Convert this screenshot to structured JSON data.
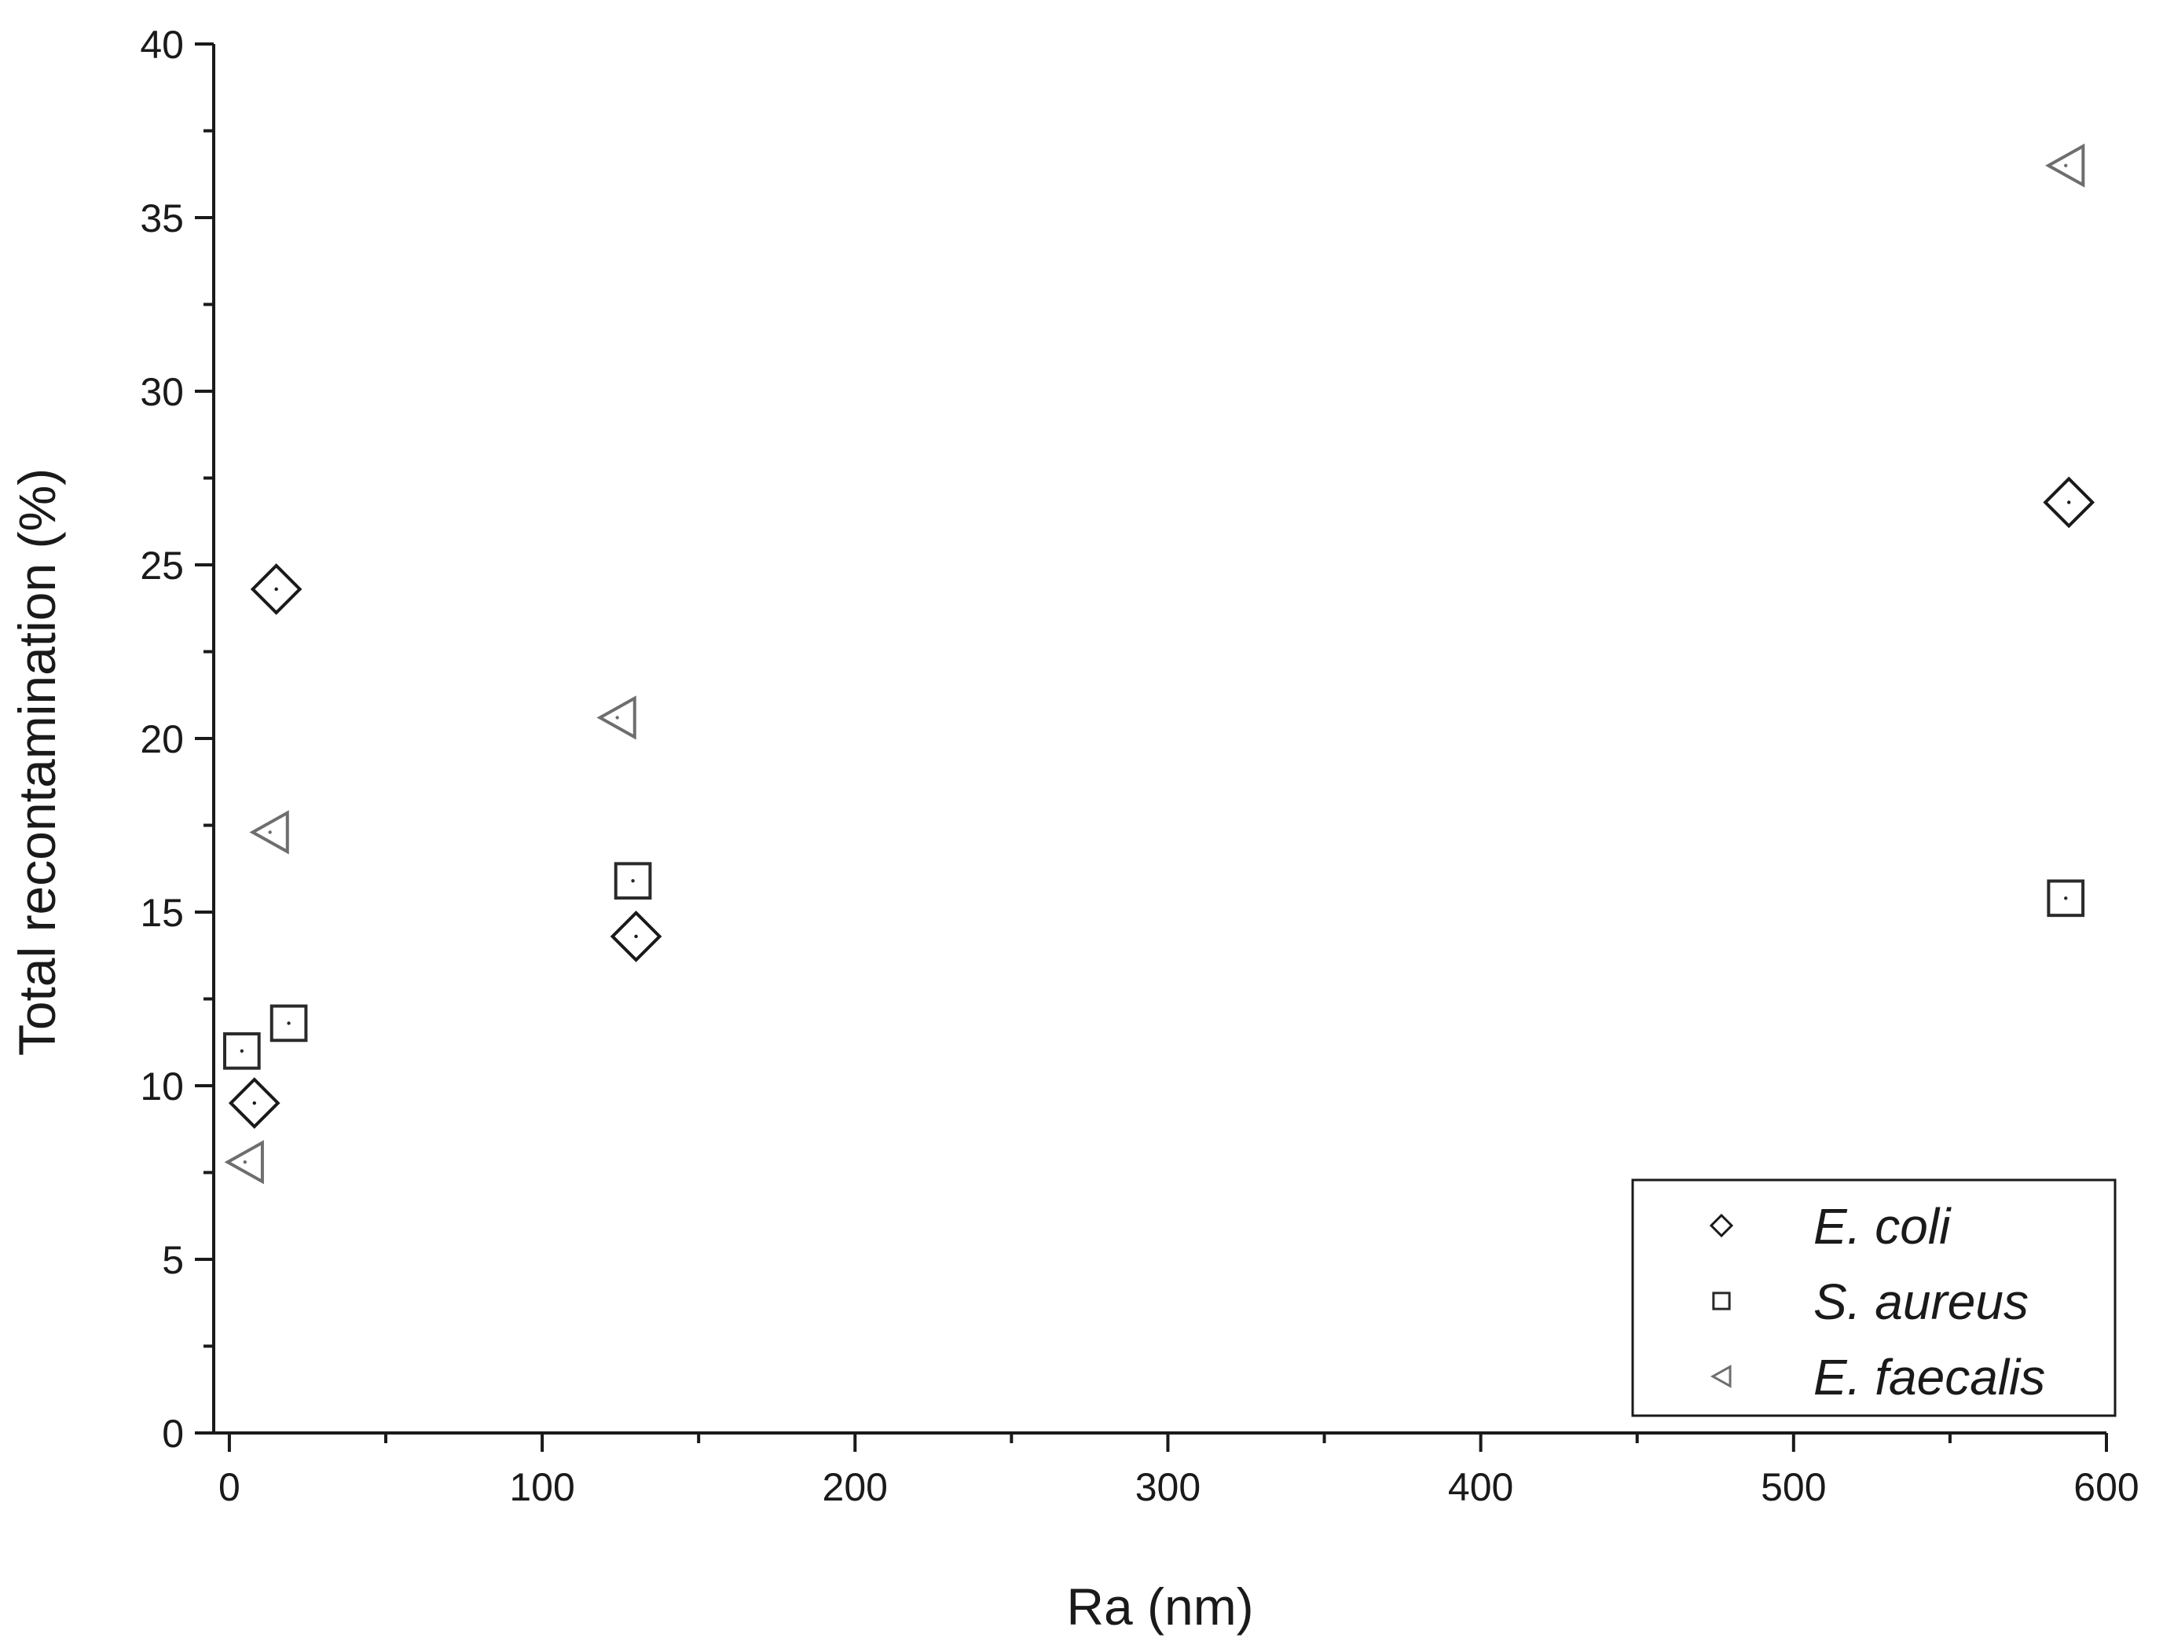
{
  "chart_data": {
    "type": "scatter",
    "title": "",
    "xlabel": "Ra (nm)",
    "ylabel": "Total recontamination (%)",
    "xlim": [
      -5,
      600
    ],
    "ylim": [
      0,
      40
    ],
    "x_ticks": [
      0,
      100,
      200,
      300,
      400,
      500,
      600
    ],
    "y_ticks": [
      0,
      5,
      10,
      15,
      20,
      25,
      30,
      35,
      40
    ],
    "grid": false,
    "legend_position": "bottom-right",
    "series": [
      {
        "name": "E. coli",
        "marker": "diamond",
        "color": "#1a1a1a",
        "points": [
          {
            "x": 8,
            "y": 9.5
          },
          {
            "x": 15,
            "y": 24.3
          },
          {
            "x": 130,
            "y": 14.3
          },
          {
            "x": 588,
            "y": 26.8
          }
        ]
      },
      {
        "name": "S. aureus",
        "marker": "square",
        "color": "#2a2a2a",
        "points": [
          {
            "x": 4,
            "y": 11.0
          },
          {
            "x": 19,
            "y": 11.8
          },
          {
            "x": 129,
            "y": 15.9
          },
          {
            "x": 587,
            "y": 15.4
          }
        ]
      },
      {
        "name": "E. faecalis",
        "marker": "triangle-left",
        "color": "#6e6e6e",
        "points": [
          {
            "x": 5,
            "y": 7.8
          },
          {
            "x": 13,
            "y": 17.3
          },
          {
            "x": 124,
            "y": 20.6
          },
          {
            "x": 587,
            "y": 36.5
          }
        ]
      }
    ]
  }
}
